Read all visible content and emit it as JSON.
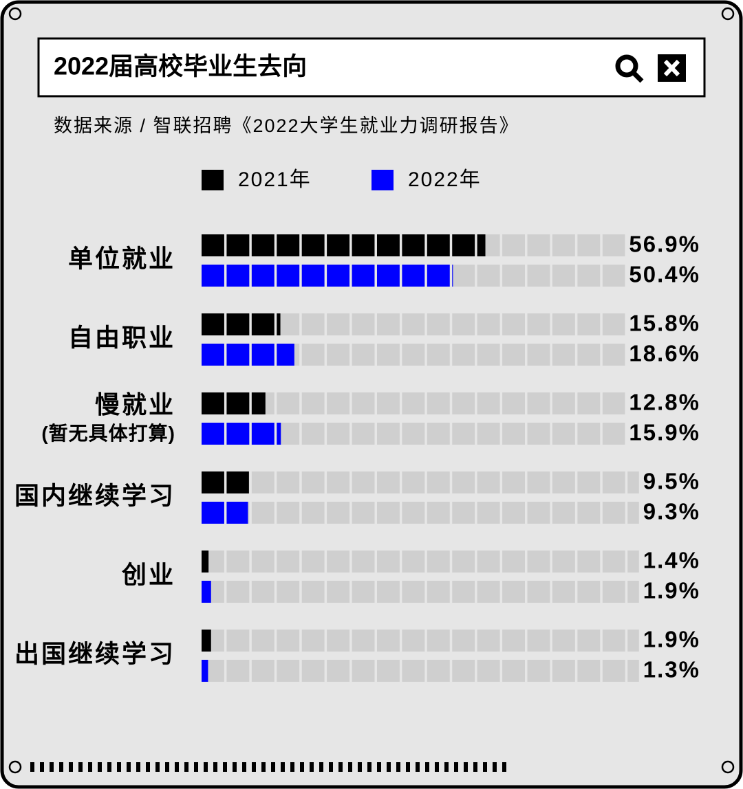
{
  "chart_data": {
    "type": "bar",
    "orientation": "horizontal",
    "title": "2022届高校毕业生去向",
    "subtitle": "数据来源 / 智联招聘《2022大学生就业力调研报告》",
    "categories": [
      "单位就业",
      "自由职业",
      "慢就业\n(暂无具体打算)",
      "国内继续学习",
      "创业",
      "出国继续学习"
    ],
    "series": [
      {
        "name": "2021年",
        "color": "#000000",
        "values": [
          56.9,
          15.8,
          12.8,
          9.5,
          1.4,
          1.9
        ],
        "value_labels": [
          "56.9%",
          "15.8%",
          "12.8%",
          "9.5%",
          "1.4%",
          "1.9%"
        ]
      },
      {
        "name": "2022年",
        "color": "#0000ff",
        "values": [
          50.4,
          18.6,
          15.9,
          9.3,
          1.9,
          1.3
        ],
        "value_labels": [
          "50.4%",
          "18.6%",
          "15.9%",
          "9.3%",
          "1.9%",
          "1.3%"
        ]
      }
    ],
    "xlim": [
      0,
      100
    ]
  }
}
